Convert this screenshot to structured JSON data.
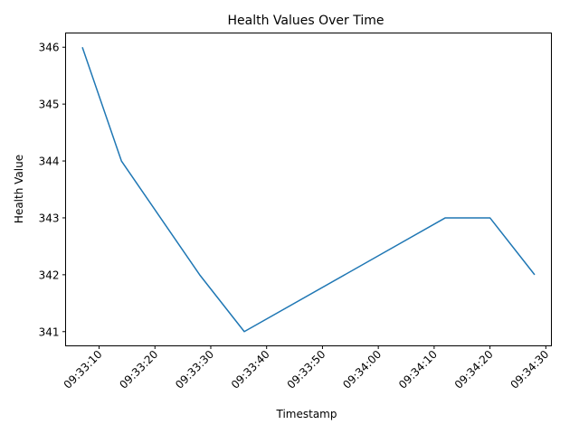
{
  "chart_data": {
    "type": "line",
    "title": "Health Values Over Time",
    "xlabel": "Timestamp",
    "ylabel": "Health Value",
    "grid": false,
    "x_ticks": [
      "09:33:10",
      "09:33:20",
      "09:33:30",
      "09:33:40",
      "09:33:50",
      "09:34:00",
      "09:34:10",
      "09:34:20",
      "09:34:30"
    ],
    "y_ticks": [
      341,
      342,
      343,
      344,
      345,
      346
    ],
    "xlim": [
      "09:33:04",
      "09:34:31"
    ],
    "ylim": [
      340.75,
      346.25
    ],
    "series": [
      {
        "color": "#1f77b4",
        "x": [
          "09:33:07",
          "09:33:14",
          "09:33:28",
          "09:33:36",
          "09:34:12",
          "09:34:20",
          "09:34:28"
        ],
        "y": [
          346,
          344,
          342,
          341,
          343,
          343,
          342
        ]
      }
    ]
  }
}
